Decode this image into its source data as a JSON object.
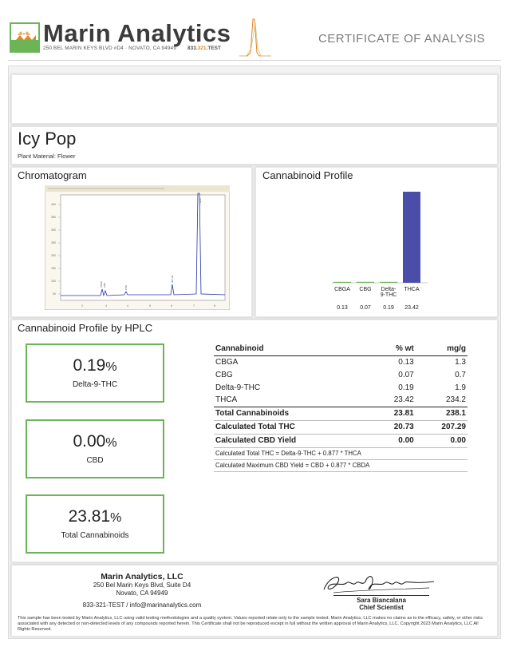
{
  "header": {
    "brand_name": "Marin Analytics",
    "brand_address": "250 BEL MARIN KEYS BLVD #D4 · NOVATO, CA 94949",
    "phone_prefix": "833.",
    "phone_mid": "321",
    "phone_suffix": ".TEST",
    "coa_title": "CERTIFICATE OF ANALYSIS",
    "accent_color": "#e8841f",
    "logo_color": "#6cb557"
  },
  "product": {
    "name": "Icy Pop",
    "material": "Plant Material: Flower"
  },
  "chromatogram": {
    "title": "Chromatogram"
  },
  "cannabinoid_profile": {
    "title": "Cannabinoid Profile"
  },
  "chart_data": {
    "type": "bar",
    "categories": [
      "CBGA",
      "CBG",
      "Delta-9-THC",
      "THCA"
    ],
    "category_lines": [
      [
        "CBGA"
      ],
      [
        "CBG"
      ],
      [
        "Delta-",
        "9-THC"
      ],
      [
        "THCA"
      ]
    ],
    "values": [
      0.13,
      0.07,
      0.19,
      23.42
    ],
    "value_labels": [
      "0.13",
      "0.07",
      "0.19",
      "23.42"
    ],
    "bar_colors": [
      "#6cb557",
      "#6cb557",
      "#6cb557",
      "#4b4ea8"
    ],
    "ylim": [
      0,
      23.42
    ],
    "grid": false
  },
  "hplc": {
    "title": "Cannabinoid Profile by HPLC",
    "stats": [
      {
        "value": "0.19",
        "unit": "%",
        "label": "Delta-9-THC"
      },
      {
        "value": "0.00",
        "unit": "%",
        "label": "CBD"
      },
      {
        "value": "23.81",
        "unit": "%",
        "label": "Total Cannabinoids"
      }
    ],
    "table": {
      "headers": [
        "Cannabinoid",
        "% wt",
        "mg/g"
      ],
      "rows": [
        [
          "CBGA",
          "0.13",
          "1.3"
        ],
        [
          "CBG",
          "0.07",
          "0.7"
        ],
        [
          "Delta-9-THC",
          "0.19",
          "1.9"
        ],
        [
          "THCA",
          "23.42",
          "234.2"
        ]
      ],
      "total": [
        "Total Cannabinoids",
        "23.81",
        "238.1"
      ],
      "calc_thc": [
        "Calculated Total THC",
        "20.73",
        "207.29"
      ],
      "calc_cbd": [
        "Calculated CBD Yield",
        "0.00",
        "0.00"
      ],
      "formula_thc": "Calculated Total THC = Delta-9-THC + 0.877 * THCA",
      "formula_cbd": "Calculated Maximum CBD Yield = CBD + 0.877 * CBDA"
    }
  },
  "footer": {
    "lab_name": "Marin Analytics, LLC",
    "lab_address_1": "250 Bel Marin Keys Blvd, Suite D4",
    "lab_address_2": "Novato, CA 94949",
    "lab_contact": "833-321-TEST / info@marinanalytics.com",
    "signer_name": "Sara Biancalana",
    "signer_title": "Chief Scientist",
    "disclaimer": "This sample has been tested by Marin Analytics, LLC using valid testing methodologies and a quality system. Values reported relate only to the sample tested. Marin Analytics, LLC makes no claims as to the efficacy, safety, or other risks associated with any detected or non-detected levels of any compounds reported herein. This Certificate shall not be reproduced except in full without the written approval of Marin Analytics, LLC. Copyright 2023 Marin Analytics, LLC All Rights Reserved."
  }
}
